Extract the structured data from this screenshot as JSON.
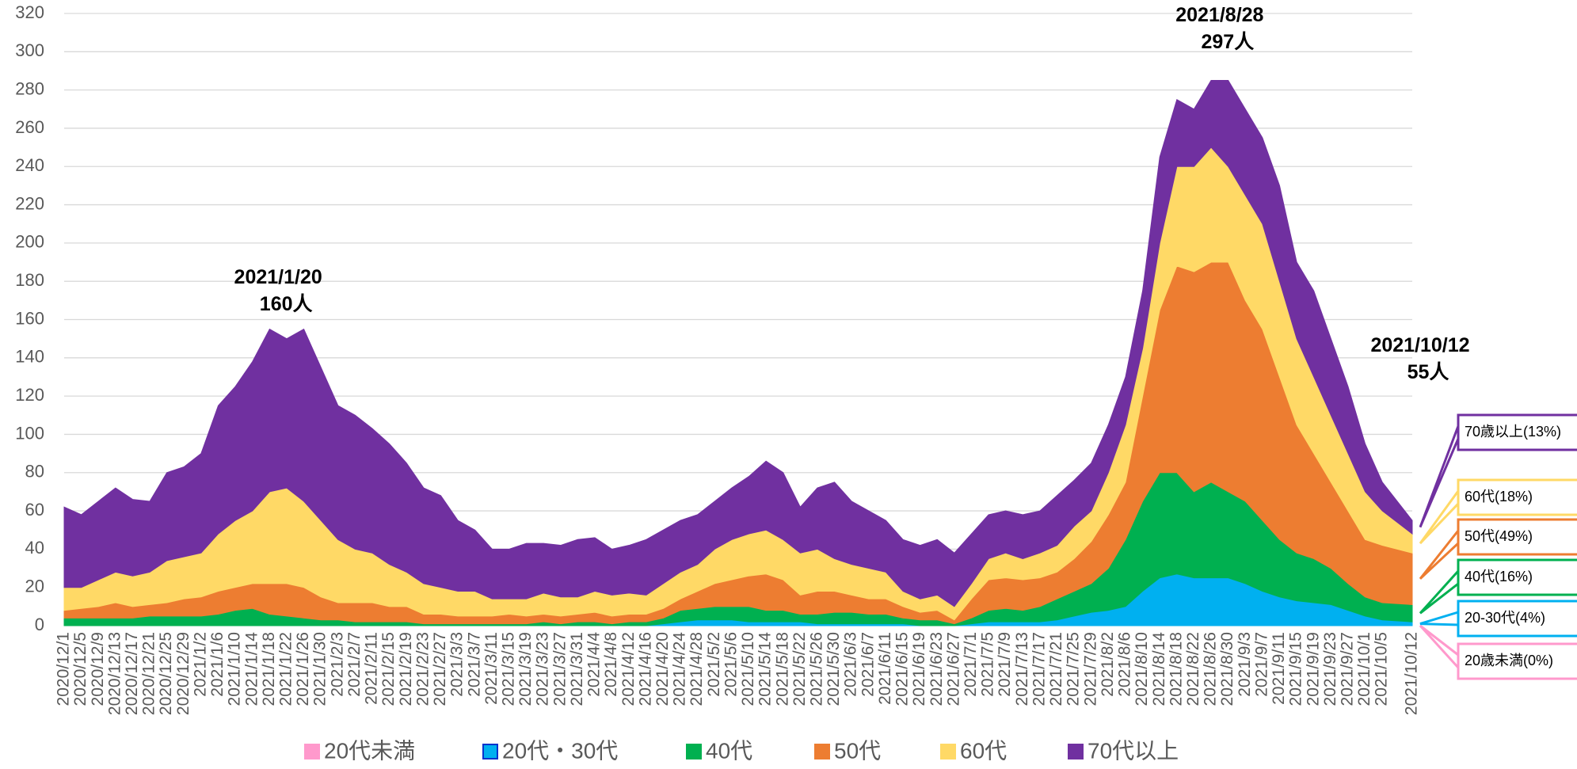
{
  "chart_data": {
    "type": "stacked_area",
    "categories": [
      "2020/12/1",
      "2020/12/5",
      "2020/12/9",
      "2020/12/13",
      "2020/12/17",
      "2020/12/21",
      "2020/12/25",
      "2020/12/29",
      "2021/1/2",
      "2021/1/6",
      "2021/1/10",
      "2021/1/14",
      "2021/1/18",
      "2021/1/22",
      "2021/1/26",
      "2021/1/30",
      "2021/2/3",
      "2021/2/7",
      "2021/2/11",
      "2021/2/15",
      "2021/2/19",
      "2021/2/23",
      "2021/2/27",
      "2021/3/3",
      "2021/3/7",
      "2021/3/11",
      "2021/3/15",
      "2021/3/19",
      "2021/3/23",
      "2021/3/27",
      "2021/3/31",
      "2021/4/4",
      "2021/4/8",
      "2021/4/12",
      "2021/4/16",
      "2021/4/20",
      "2021/4/24",
      "2021/4/28",
      "2021/5/2",
      "2021/5/6",
      "2021/5/10",
      "2021/5/14",
      "2021/5/18",
      "2021/5/22",
      "2021/5/26",
      "2021/5/30",
      "2021/6/3",
      "2021/6/7",
      "2021/6/11",
      "2021/6/15",
      "2021/6/19",
      "2021/6/23",
      "2021/6/27",
      "2021/7/1",
      "2021/7/5",
      "2021/7/9",
      "2021/7/13",
      "2021/7/17",
      "2021/7/21",
      "2021/7/25",
      "2021/7/29",
      "2021/8/2",
      "2021/8/6",
      "2021/8/10",
      "2021/8/14",
      "2021/8/18",
      "2021/8/22",
      "2021/8/26",
      "2021/8/30",
      "2021/9/3",
      "2021/9/7",
      "2021/9/11",
      "2021/9/15",
      "2021/9/19",
      "2021/9/23",
      "2021/9/27",
      "2021/10/1",
      "2021/10/5",
      "2021/10/12"
    ],
    "series": [
      {
        "name": "20代未満",
        "color": "#ff99cc",
        "callout": "20歳未満(0%)",
        "values": [
          0,
          0,
          0,
          0,
          0,
          0,
          0,
          0,
          0,
          0,
          0,
          0,
          0,
          0,
          0,
          0,
          0,
          0,
          0,
          0,
          0,
          0,
          0,
          0,
          0,
          0,
          0,
          0,
          0,
          0,
          0,
          0,
          0,
          0,
          0,
          0,
          0,
          0,
          0,
          0,
          0,
          0,
          0,
          0,
          0,
          0,
          0,
          0,
          0,
          0,
          0,
          0,
          0,
          0,
          0,
          0,
          0,
          0,
          0,
          0,
          0,
          0,
          0,
          0,
          0,
          0,
          0,
          0,
          0,
          0,
          0,
          0,
          0,
          0,
          0,
          0,
          0,
          0,
          0
        ]
      },
      {
        "name": "20代・30代",
        "color": "#00b0f0",
        "callout": "20-30代(4%)",
        "values": [
          0,
          0,
          0,
          0,
          0,
          0,
          0,
          0,
          0,
          0,
          0,
          0,
          0,
          0,
          0,
          0,
          0,
          0,
          0,
          0,
          0,
          0,
          0,
          0,
          0,
          0,
          0,
          0,
          0,
          0,
          0,
          0,
          0,
          0,
          0,
          1,
          2,
          3,
          3,
          3,
          2,
          2,
          2,
          2,
          1,
          1,
          1,
          1,
          1,
          1,
          0,
          0,
          0,
          1,
          2,
          2,
          2,
          2,
          3,
          5,
          7,
          8,
          10,
          18,
          25,
          27,
          25,
          25,
          25,
          22,
          18,
          15,
          13,
          12,
          11,
          8,
          5,
          3,
          2
        ]
      },
      {
        "name": "40代",
        "color": "#00b050",
        "callout": "40代(16%)",
        "values": [
          4,
          4,
          4,
          4,
          4,
          5,
          5,
          5,
          5,
          6,
          8,
          9,
          6,
          5,
          4,
          3,
          3,
          2,
          2,
          2,
          2,
          1,
          1,
          1,
          1,
          1,
          1,
          1,
          2,
          1,
          2,
          2,
          1,
          2,
          2,
          3,
          6,
          6,
          7,
          7,
          8,
          6,
          6,
          4,
          5,
          6,
          6,
          5,
          5,
          3,
          3,
          3,
          1,
          3,
          6,
          7,
          6,
          8,
          11,
          13,
          15,
          22,
          35,
          47,
          55,
          53,
          45,
          50,
          45,
          43,
          37,
          30,
          25,
          23,
          19,
          14,
          10,
          9,
          9
        ]
      },
      {
        "name": "50代",
        "color": "#ed7d31",
        "callout": "50代(49%)",
        "values": [
          4,
          5,
          6,
          8,
          6,
          6,
          7,
          9,
          10,
          12,
          12,
          13,
          16,
          17,
          16,
          12,
          9,
          10,
          10,
          8,
          8,
          5,
          5,
          4,
          4,
          4,
          5,
          4,
          4,
          4,
          4,
          5,
          4,
          4,
          4,
          5,
          6,
          9,
          12,
          14,
          16,
          19,
          16,
          10,
          12,
          11,
          9,
          8,
          8,
          6,
          4,
          5,
          2,
          10,
          16,
          16,
          16,
          15,
          14,
          17,
          22,
          28,
          30,
          55,
          85,
          108,
          115,
          115,
          120,
          105,
          100,
          85,
          67,
          55,
          45,
          38,
          30,
          30,
          27
        ]
      },
      {
        "name": "60代",
        "color": "#ffd966",
        "callout": "60代(18%)",
        "values": [
          12,
          11,
          14,
          16,
          16,
          17,
          22,
          22,
          23,
          30,
          35,
          38,
          48,
          50,
          45,
          40,
          33,
          28,
          26,
          22,
          18,
          16,
          14,
          13,
          13,
          9,
          8,
          9,
          11,
          10,
          9,
          11,
          11,
          11,
          10,
          13,
          14,
          14,
          18,
          21,
          22,
          23,
          21,
          22,
          22,
          17,
          16,
          16,
          14,
          8,
          7,
          8,
          7,
          8,
          11,
          13,
          11,
          13,
          14,
          17,
          16,
          22,
          30,
          25,
          35,
          52,
          55,
          60,
          50,
          55,
          55,
          50,
          45,
          40,
          35,
          30,
          25,
          18,
          10
        ]
      },
      {
        "name": "70代以上",
        "color": "#7030a0",
        "callout": "70歳以上(13%)",
        "values": [
          42,
          38,
          41,
          44,
          40,
          37,
          46,
          47,
          52,
          67,
          70,
          78,
          85,
          78,
          90,
          80,
          70,
          70,
          65,
          63,
          57,
          50,
          48,
          37,
          32,
          26,
          26,
          29,
          26,
          27,
          30,
          28,
          24,
          25,
          29,
          28,
          27,
          26,
          25,
          27,
          30,
          36,
          35,
          24,
          32,
          40,
          33,
          30,
          27,
          27,
          28,
          29,
          28,
          26,
          23,
          22,
          23,
          22,
          26,
          24,
          25,
          25,
          25,
          30,
          45,
          35,
          30,
          35,
          45,
          45,
          45,
          50,
          40,
          45,
          40,
          35,
          25,
          15,
          7
        ]
      }
    ],
    "annotations": [
      {
        "date": "2021/1/20",
        "value": 160,
        "value_label": "160人"
      },
      {
        "date": "2021/8/28",
        "value": 297,
        "value_label": "297人"
      },
      {
        "date": "2021/10/12",
        "value": 55,
        "value_label": "55人"
      }
    ],
    "ylim": [
      0,
      320
    ],
    "yticks": [
      0,
      20,
      40,
      60,
      80,
      100,
      120,
      140,
      160,
      180,
      200,
      220,
      240,
      260,
      280,
      300,
      320
    ],
    "grid": true,
    "legend": "bottom"
  }
}
